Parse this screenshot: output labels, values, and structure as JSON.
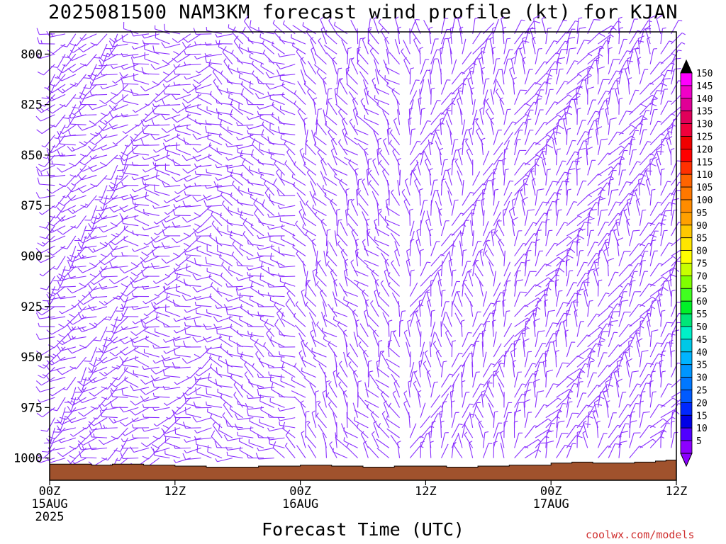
{
  "title": "2025081500 NAM3KM forecast wind profile (kt) for KJAN",
  "credit": "coolwx.com/models",
  "chart_data": {
    "type": "wind_barb_time_height",
    "title": "2025081500 NAM3KM forecast wind profile (kt) for KJAN",
    "xlabel": "Forecast Time (UTC)",
    "ylabel": "",
    "x_range_hours": [
      0,
      60
    ],
    "y_range_hpa": [
      789,
      1011
    ],
    "y_axis_inverted": true,
    "y_ticks": [
      {
        "value": 800,
        "label": "800"
      },
      {
        "value": 825,
        "label": "825"
      },
      {
        "value": 850,
        "label": "850"
      },
      {
        "value": 875,
        "label": "875"
      },
      {
        "value": 900,
        "label": "900"
      },
      {
        "value": 925,
        "label": "925"
      },
      {
        "value": 950,
        "label": "950"
      },
      {
        "value": 975,
        "label": "975"
      },
      {
        "value": 1000,
        "label": "1000"
      }
    ],
    "x_ticks": [
      {
        "hour": 0,
        "lines": [
          "00Z",
          "15AUG",
          "2025"
        ]
      },
      {
        "hour": 12,
        "lines": [
          "12Z"
        ]
      },
      {
        "hour": 24,
        "lines": [
          "00Z",
          "16AUG"
        ]
      },
      {
        "hour": 36,
        "lines": [
          "12Z"
        ]
      },
      {
        "hour": 48,
        "lines": [
          "00Z",
          "17AUG"
        ]
      },
      {
        "hour": 60,
        "lines": [
          "12Z"
        ]
      }
    ],
    "colorbar": {
      "labels": [
        "150",
        "145",
        "140",
        "135",
        "130",
        "125",
        "120",
        "115",
        "110",
        "105",
        "100",
        "95",
        "90",
        "85",
        "80",
        "75",
        "70",
        "65",
        "60",
        "55",
        "50",
        "45",
        "40",
        "35",
        "30",
        "25",
        "20",
        "15",
        "10",
        "5"
      ],
      "colors": [
        "#ff00ff",
        "#f000c8",
        "#e00096",
        "#e0005a",
        "#f0003c",
        "#f00000",
        "#ff0000",
        "#ff3000",
        "#ff6400",
        "#ff7800",
        "#ff8c00",
        "#ffa000",
        "#ffc800",
        "#ffe600",
        "#ffff00",
        "#c8ff00",
        "#80ff00",
        "#40ff20",
        "#00f028",
        "#00e678",
        "#00f0c8",
        "#00c8e6",
        "#00b4ff",
        "#0096ff",
        "#0078ff",
        "#005aff",
        "#0028ff",
        "#0000e6",
        "#5000ff",
        "#8c00ff"
      ],
      "top_triangle_color": "#000000",
      "bottom_triangle_color": "#8c00ff"
    },
    "barb_color": "#8a30ff",
    "ground_color": "#a0522d",
    "surface_pressure": [
      {
        "hour": 0,
        "p": 1003
      },
      {
        "hour": 4,
        "p": 1003.5
      },
      {
        "hour": 6,
        "p": 1003
      },
      {
        "hour": 9,
        "p": 1003.5
      },
      {
        "hour": 12,
        "p": 1004
      },
      {
        "hour": 15,
        "p": 1004.5
      },
      {
        "hour": 18,
        "p": 1004.5
      },
      {
        "hour": 20,
        "p": 1004
      },
      {
        "hour": 24,
        "p": 1003.5
      },
      {
        "hour": 27,
        "p": 1004
      },
      {
        "hour": 30,
        "p": 1004.5
      },
      {
        "hour": 33,
        "p": 1004
      },
      {
        "hour": 36,
        "p": 1004
      },
      {
        "hour": 38,
        "p": 1004.5
      },
      {
        "hour": 41,
        "p": 1004
      },
      {
        "hour": 44,
        "p": 1003.5
      },
      {
        "hour": 48,
        "p": 1002.5
      },
      {
        "hour": 50,
        "p": 1002
      },
      {
        "hour": 52,
        "p": 1002.5
      },
      {
        "hour": 54,
        "p": 1002.5
      },
      {
        "hour": 56,
        "p": 1002
      },
      {
        "hour": 58,
        "p": 1001.5
      },
      {
        "hour": 59,
        "p": 1001
      },
      {
        "hour": 60,
        "p": 1002
      }
    ],
    "barb_time_step_hours": 1,
    "barb_levels_hpa": [
      790,
      795,
      800,
      805,
      810,
      815,
      820,
      825,
      830,
      835,
      840,
      845,
      850,
      855,
      860,
      865,
      870,
      875,
      880,
      885,
      890,
      895,
      900,
      905,
      910,
      915,
      920,
      925,
      930,
      935,
      940,
      945,
      950,
      955,
      960,
      965,
      970,
      975,
      980,
      985,
      990,
      995,
      1000
    ],
    "wind_regimes": [
      {
        "from_hour": 0,
        "to_hour": 8,
        "direction_deg": 235,
        "speed_kt": 12
      },
      {
        "from_hour": 8,
        "to_hour": 16,
        "direction_deg": 260,
        "speed_kt": 10
      },
      {
        "from_hour": 16,
        "to_hour": 24,
        "direction_deg": 290,
        "speed_kt": 8
      },
      {
        "from_hour": 24,
        "to_hour": 34,
        "direction_deg": 330,
        "speed_kt": 6
      },
      {
        "from_hour": 34,
        "to_hour": 44,
        "direction_deg": 5,
        "speed_kt": 6
      },
      {
        "from_hour": 44,
        "to_hour": 60,
        "direction_deg": 20,
        "speed_kt": 8
      }
    ]
  }
}
